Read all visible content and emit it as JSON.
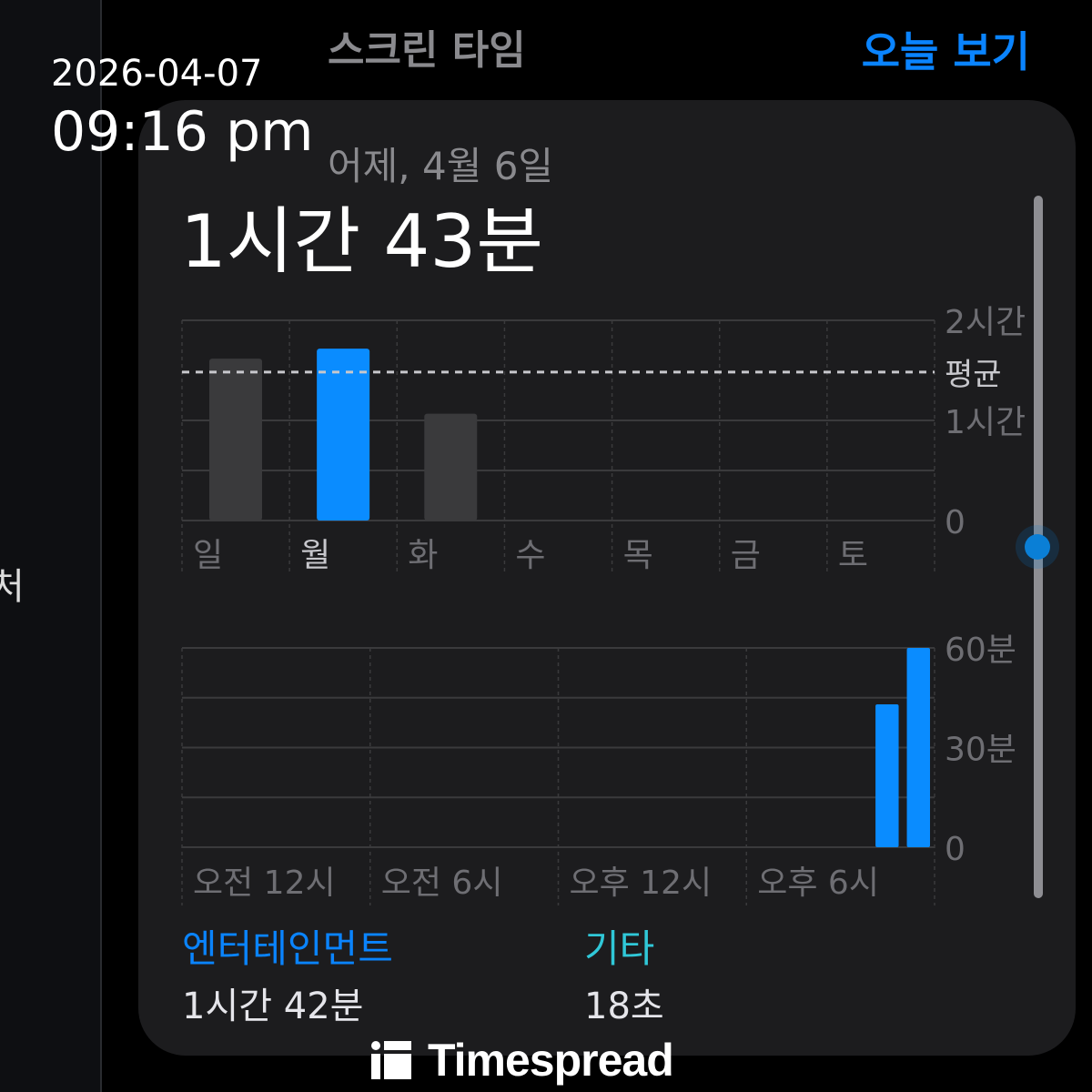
{
  "overlay": {
    "date": "2026-04-07",
    "time": "09:16 pm"
  },
  "sidebar": {
    "partial_text": "처"
  },
  "header": {
    "title": "스크린 타임",
    "today_link": "오늘 보기"
  },
  "card": {
    "date_label": "어제, 4월 6일",
    "total": "1시간 43분"
  },
  "colors": {
    "accent": "#0a84ff",
    "bar_blue": "#0a8cff",
    "bar_gray": "#3a3a3c",
    "other_teal": "#30c8d8",
    "card_bg": "#1c1c1e"
  },
  "chart_data": [
    {
      "type": "bar",
      "categories": [
        "일",
        "월",
        "화",
        "수",
        "목",
        "금",
        "토"
      ],
      "values": [
        97,
        103,
        64,
        null,
        null,
        null,
        null
      ],
      "unit": "minutes",
      "highlighted": "월",
      "average": 89,
      "average_label": "평균",
      "ylim": [
        0,
        120
      ],
      "y_ticks": [
        {
          "value": 120,
          "label": "2시간"
        },
        {
          "value": 60,
          "label": "1시간"
        },
        {
          "value": 0,
          "label": "0"
        }
      ],
      "grid": true
    },
    {
      "type": "bar",
      "x": [
        22,
        23
      ],
      "values": [
        43,
        60
      ],
      "unit": "minutes",
      "xlim": [
        0,
        24
      ],
      "x_ticks": [
        {
          "value": 0,
          "label": "오전 12시"
        },
        {
          "value": 6,
          "label": "오전 6시"
        },
        {
          "value": 12,
          "label": "오후 12시"
        },
        {
          "value": 18,
          "label": "오후 6시"
        }
      ],
      "ylim": [
        0,
        60
      ],
      "y_ticks": [
        {
          "value": 60,
          "label": "60분"
        },
        {
          "value": 30,
          "label": "30분"
        },
        {
          "value": 0,
          "label": "0"
        }
      ],
      "grid": true
    }
  ],
  "categories": [
    {
      "name": "엔터테인먼트",
      "value": "1시간 42분",
      "color": "#0a84ff"
    },
    {
      "name": "기타",
      "value": "18초",
      "color": "#30c8d8"
    }
  ],
  "watermark": "Timespread"
}
